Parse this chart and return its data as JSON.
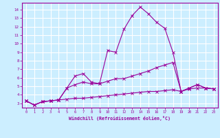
{
  "xlabel": "Windchill (Refroidissement éolien,°C)",
  "bg_color": "#cceeff",
  "line_color": "#990099",
  "grid_color": "#ffffff",
  "xlim": [
    -0.5,
    23.5
  ],
  "ylim": [
    2.5,
    14.8
  ],
  "xticks": [
    0,
    1,
    2,
    3,
    4,
    5,
    6,
    7,
    8,
    9,
    10,
    11,
    12,
    13,
    14,
    15,
    16,
    17,
    18,
    19,
    20,
    21,
    22,
    23
  ],
  "yticks": [
    3,
    4,
    5,
    6,
    7,
    8,
    9,
    10,
    11,
    12,
    13,
    14
  ],
  "series": [
    [
      3.3,
      2.8,
      3.2,
      3.3,
      3.4,
      4.8,
      6.2,
      6.5,
      5.5,
      5.3,
      9.2,
      9.0,
      11.7,
      13.3,
      14.3,
      13.5,
      12.5,
      11.8,
      9.0,
      4.4,
      4.8,
      5.2,
      4.8,
      4.7
    ],
    [
      3.3,
      2.8,
      3.2,
      3.3,
      3.4,
      4.8,
      5.2,
      5.5,
      5.3,
      5.3,
      5.6,
      5.9,
      5.9,
      6.2,
      6.5,
      6.8,
      7.2,
      7.5,
      7.8,
      4.4,
      4.8,
      5.2,
      4.8,
      4.7
    ],
    [
      3.3,
      2.8,
      3.2,
      3.3,
      3.4,
      3.5,
      3.6,
      3.6,
      3.7,
      3.8,
      3.9,
      4.0,
      4.1,
      4.2,
      4.3,
      4.4,
      4.4,
      4.5,
      4.6,
      4.4,
      4.7,
      4.8,
      4.8,
      4.7
    ]
  ]
}
